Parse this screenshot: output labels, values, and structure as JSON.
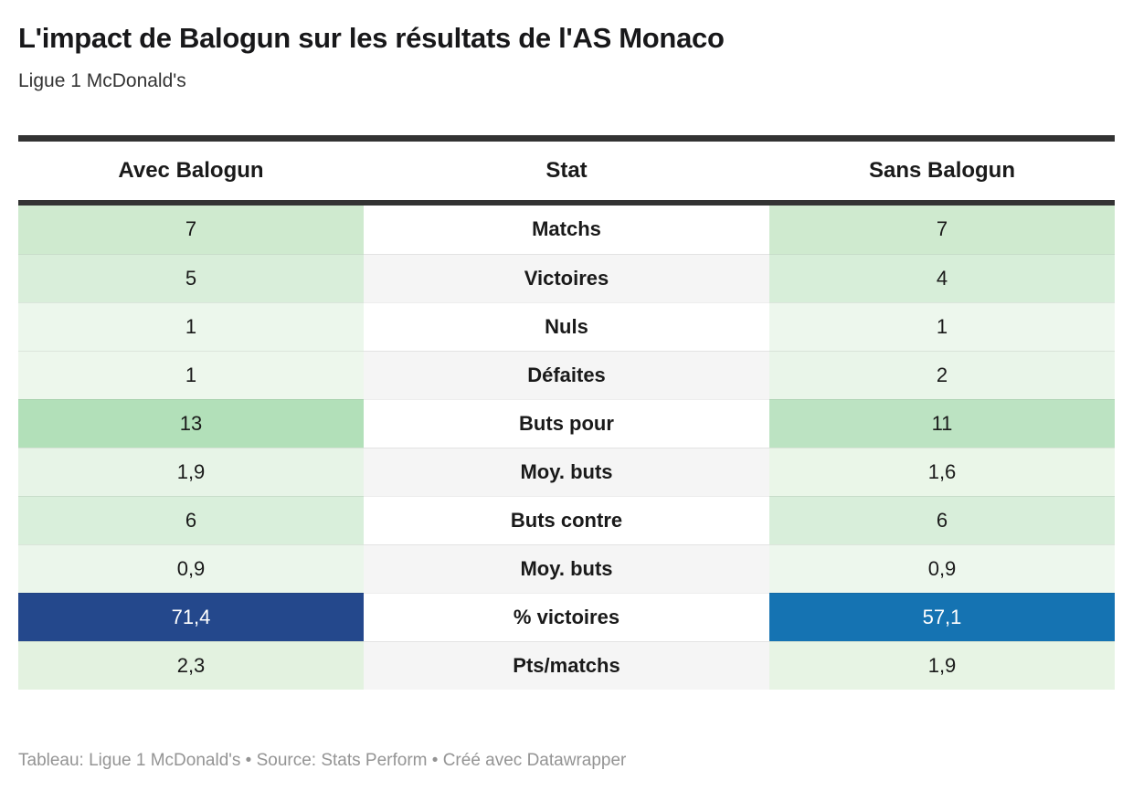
{
  "header": {
    "title": "L'impact de Balogun sur les résultats de l'AS Monaco",
    "subtitle": "Ligue 1 McDonald's"
  },
  "table": {
    "columns": [
      "Avec Balogun",
      "Stat",
      "Sans Balogun"
    ],
    "rows": [
      {
        "stat": "Matchs",
        "avec": "7",
        "sans": "7",
        "avec_bg": "#cfeacf",
        "sans_bg": "#cfeacf",
        "avec_fg": "#1a1a1a",
        "sans_fg": "#1a1a1a",
        "stat_bg": "#ffffff"
      },
      {
        "stat": "Victoires",
        "avec": "5",
        "sans": "4",
        "avec_bg": "#d9eeda",
        "sans_bg": "#d7eed9",
        "avec_fg": "#1a1a1a",
        "sans_fg": "#1a1a1a",
        "stat_bg": "#f5f5f5"
      },
      {
        "stat": "Nuls",
        "avec": "1",
        "sans": "1",
        "avec_bg": "#ecf7ec",
        "sans_bg": "#edf7ed",
        "avec_fg": "#1a1a1a",
        "sans_fg": "#1a1a1a",
        "stat_bg": "#ffffff"
      },
      {
        "stat": "Défaites",
        "avec": "1",
        "sans": "2",
        "avec_bg": "#edf7ec",
        "sans_bg": "#e9f5e9",
        "avec_fg": "#1a1a1a",
        "sans_fg": "#1a1a1a",
        "stat_bg": "#f5f5f5"
      },
      {
        "stat": "Buts pour",
        "avec": "13",
        "sans": "11",
        "avec_bg": "#b2e0b9",
        "sans_bg": "#bce3c2",
        "avec_fg": "#1a1a1a",
        "sans_fg": "#1a1a1a",
        "stat_bg": "#ffffff"
      },
      {
        "stat": "Moy. buts",
        "avec": "1,9",
        "sans": "1,6",
        "avec_bg": "#e7f4e7",
        "sans_bg": "#eaf6e8",
        "avec_fg": "#1a1a1a",
        "sans_fg": "#1a1a1a",
        "stat_bg": "#f5f5f5"
      },
      {
        "stat": "Buts contre",
        "avec": "6",
        "sans": "6",
        "avec_bg": "#d9efdb",
        "sans_bg": "#d8eeda",
        "avec_fg": "#1a1a1a",
        "sans_fg": "#1a1a1a",
        "stat_bg": "#ffffff"
      },
      {
        "stat": "Moy. buts",
        "avec": "0,9",
        "sans": "0,9",
        "avec_bg": "#ebf6eb",
        "sans_bg": "#edf7ed",
        "avec_fg": "#1a1a1a",
        "sans_fg": "#1a1a1a",
        "stat_bg": "#f5f5f5"
      },
      {
        "stat": "% victoires",
        "avec": "71,4",
        "sans": "57,1",
        "avec_bg": "#24488c",
        "sans_bg": "#1573b2",
        "avec_fg": "#ffffff",
        "sans_fg": "#ffffff",
        "stat_bg": "#ffffff"
      },
      {
        "stat": "Pts/matchs",
        "avec": "2,3",
        "sans": "1,9",
        "avec_bg": "#e3f2e0",
        "sans_bg": "#e7f4e4",
        "avec_fg": "#1a1a1a",
        "sans_fg": "#1a1a1a",
        "stat_bg": "#f5f5f5"
      }
    ]
  },
  "footer": {
    "text": "Tableau: Ligue 1 McDonald's • Source: Stats Perform • Créé avec Datawrapper"
  },
  "colors": {
    "rule": "#333333",
    "blue_dark": "#24488c",
    "blue_light": "#1573b2",
    "green_max": "#b2e0b9",
    "footer_text": "#949494"
  },
  "chart_data": {
    "type": "table",
    "title": "L'impact de Balogun sur les résultats de l'AS Monaco",
    "subtitle": "Ligue 1 McDonald's",
    "categories": [
      "Matchs",
      "Victoires",
      "Nuls",
      "Défaites",
      "Buts pour",
      "Moy. buts",
      "Buts contre",
      "Moy. buts",
      "% victoires",
      "Pts/matchs"
    ],
    "series": [
      {
        "name": "Avec Balogun",
        "values": [
          7,
          5,
          1,
          1,
          13,
          1.9,
          6,
          0.9,
          71.4,
          2.3
        ]
      },
      {
        "name": "Sans Balogun",
        "values": [
          7,
          4,
          1,
          2,
          11,
          1.6,
          6,
          0.9,
          57.1,
          1.9
        ]
      }
    ],
    "notes": "Heatmap-shaded cells: green scale for count stats, blue highlight for % victoires row",
    "source": "Tableau: Ligue 1 McDonald's • Source: Stats Perform • Créé avec Datawrapper"
  }
}
